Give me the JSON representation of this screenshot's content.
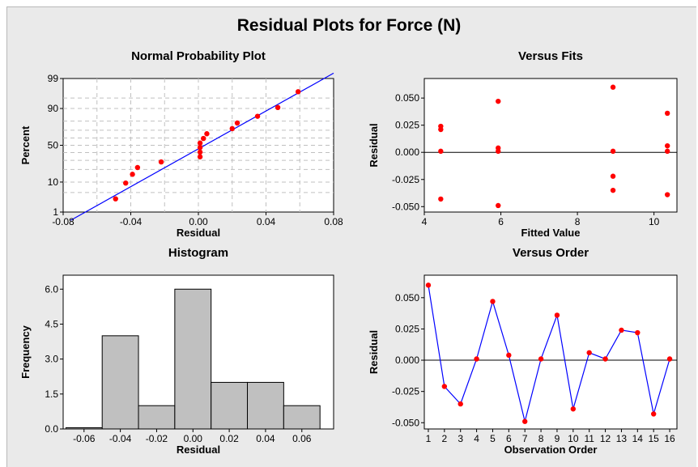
{
  "title": "Residual Plots for Force (N)",
  "colors": {
    "background": "#eaeaea",
    "point": "#ff0000",
    "line": "#0000ff",
    "bar": "#c0c0c0",
    "grid": "#c0c0c0"
  },
  "chart_data": [
    {
      "type": "scatter",
      "title": "Normal Probability Plot",
      "xlabel": "Residual",
      "ylabel": "Percent",
      "xlim": [
        -0.08,
        0.08
      ],
      "x_ticks": [
        "-0.08",
        "-0.04",
        "0.00",
        "0.04",
        "0.08"
      ],
      "x_tick_values": [
        -0.08,
        -0.04,
        0,
        0.04,
        0.08
      ],
      "y_ticks": [
        "1",
        "10",
        "50",
        "90",
        "99"
      ],
      "y_tick_values": [
        1,
        10,
        50,
        90,
        99
      ],
      "y_scale": "normal-probability",
      "grid": true,
      "points": [
        [
          -0.049,
          3.1
        ],
        [
          -0.043,
          9.4
        ],
        [
          -0.039,
          15.6
        ],
        [
          -0.036,
          21.9
        ],
        [
          -0.022,
          28.1
        ],
        [
          0.001,
          34.4
        ],
        [
          0.001,
          40.6
        ],
        [
          0.001,
          46.9
        ],
        [
          0.001,
          53.1
        ],
        [
          0.003,
          59.4
        ],
        [
          0.005,
          65.6
        ],
        [
          0.02,
          71.9
        ],
        [
          0.023,
          78.1
        ],
        [
          0.035,
          84.4
        ],
        [
          0.047,
          90.6
        ],
        [
          0.059,
          96.9
        ]
      ],
      "fit_line": {
        "x": [
          -0.0755,
          0.08
        ],
        "y": [
          0.45,
          99.4
        ]
      }
    },
    {
      "type": "scatter",
      "title": "Versus Fits",
      "xlabel": "Fitted Value",
      "ylabel": "Residual",
      "xlim": [
        4.0,
        10.6
      ],
      "ylim": [
        -0.055,
        0.068
      ],
      "x_ticks": [
        "4",
        "6",
        "8",
        "10"
      ],
      "x_tick_values": [
        4,
        6,
        8,
        10
      ],
      "y_ticks": [
        "0.050",
        "0.025",
        "0.000",
        "-0.025",
        "-0.050"
      ],
      "y_tick_values": [
        0.05,
        0.025,
        0,
        -0.025,
        -0.05
      ],
      "reference_line": 0,
      "points": [
        [
          4.43,
          0.024
        ],
        [
          4.43,
          0.021
        ],
        [
          4.43,
          0.001
        ],
        [
          4.43,
          -0.043
        ],
        [
          5.93,
          0.047
        ],
        [
          5.93,
          0.004
        ],
        [
          5.93,
          0.001
        ],
        [
          5.93,
          -0.049
        ],
        [
          8.93,
          0.06
        ],
        [
          8.93,
          0.001
        ],
        [
          8.93,
          -0.022
        ],
        [
          8.93,
          -0.035
        ],
        [
          10.35,
          0.036
        ],
        [
          10.35,
          0.006
        ],
        [
          10.35,
          0.001
        ],
        [
          10.35,
          -0.039
        ]
      ]
    },
    {
      "type": "bar",
      "title": "Histogram",
      "xlabel": "Residual",
      "ylabel": "Frequency",
      "xlim": [
        -0.0715,
        0.0775
      ],
      "ylim": [
        0,
        6.6
      ],
      "x_ticks": [
        "-0.06",
        "-0.04",
        "-0.02",
        "0.00",
        "0.02",
        "0.04",
        "0.06"
      ],
      "x_tick_values": [
        -0.06,
        -0.04,
        -0.02,
        0,
        0.02,
        0.04,
        0.06
      ],
      "y_ticks": [
        "6.0",
        "4.5",
        "3.0",
        "1.5",
        "0.0"
      ],
      "y_tick_values": [
        6.0,
        4.5,
        3.0,
        1.5,
        0.0
      ],
      "bins": [
        {
          "from": -0.07,
          "to": -0.05,
          "count": 0
        },
        {
          "from": -0.05,
          "to": -0.03,
          "count": 4
        },
        {
          "from": -0.03,
          "to": -0.01,
          "count": 1
        },
        {
          "from": -0.01,
          "to": 0.01,
          "count": 6
        },
        {
          "from": 0.01,
          "to": 0.03,
          "count": 2
        },
        {
          "from": 0.03,
          "to": 0.05,
          "count": 2
        },
        {
          "from": 0.05,
          "to": 0.07,
          "count": 1
        }
      ]
    },
    {
      "type": "line",
      "title": "Versus Order",
      "xlabel": "Observation Order",
      "ylabel": "Residual",
      "xlim": [
        0.75,
        16.45
      ],
      "ylim": [
        -0.055,
        0.068
      ],
      "x_ticks": [
        "1",
        "2",
        "3",
        "4",
        "5",
        "6",
        "7",
        "8",
        "9",
        "10",
        "11",
        "12",
        "13",
        "14",
        "15",
        "16"
      ],
      "x_tick_values": [
        1,
        2,
        3,
        4,
        5,
        6,
        7,
        8,
        9,
        10,
        11,
        12,
        13,
        14,
        15,
        16
      ],
      "y_ticks": [
        "0.050",
        "0.025",
        "0.000",
        "-0.025",
        "-0.050"
      ],
      "y_tick_values": [
        0.05,
        0.025,
        0,
        -0.025,
        -0.05
      ],
      "reference_line": 0,
      "x": [
        1,
        2,
        3,
        4,
        5,
        6,
        7,
        8,
        9,
        10,
        11,
        12,
        13,
        14,
        15,
        16
      ],
      "values": [
        0.06,
        -0.021,
        -0.035,
        0.001,
        0.047,
        0.004,
        -0.049,
        0.001,
        0.036,
        -0.039,
        0.006,
        0.001,
        0.024,
        0.022,
        -0.043,
        0.001
      ]
    }
  ]
}
